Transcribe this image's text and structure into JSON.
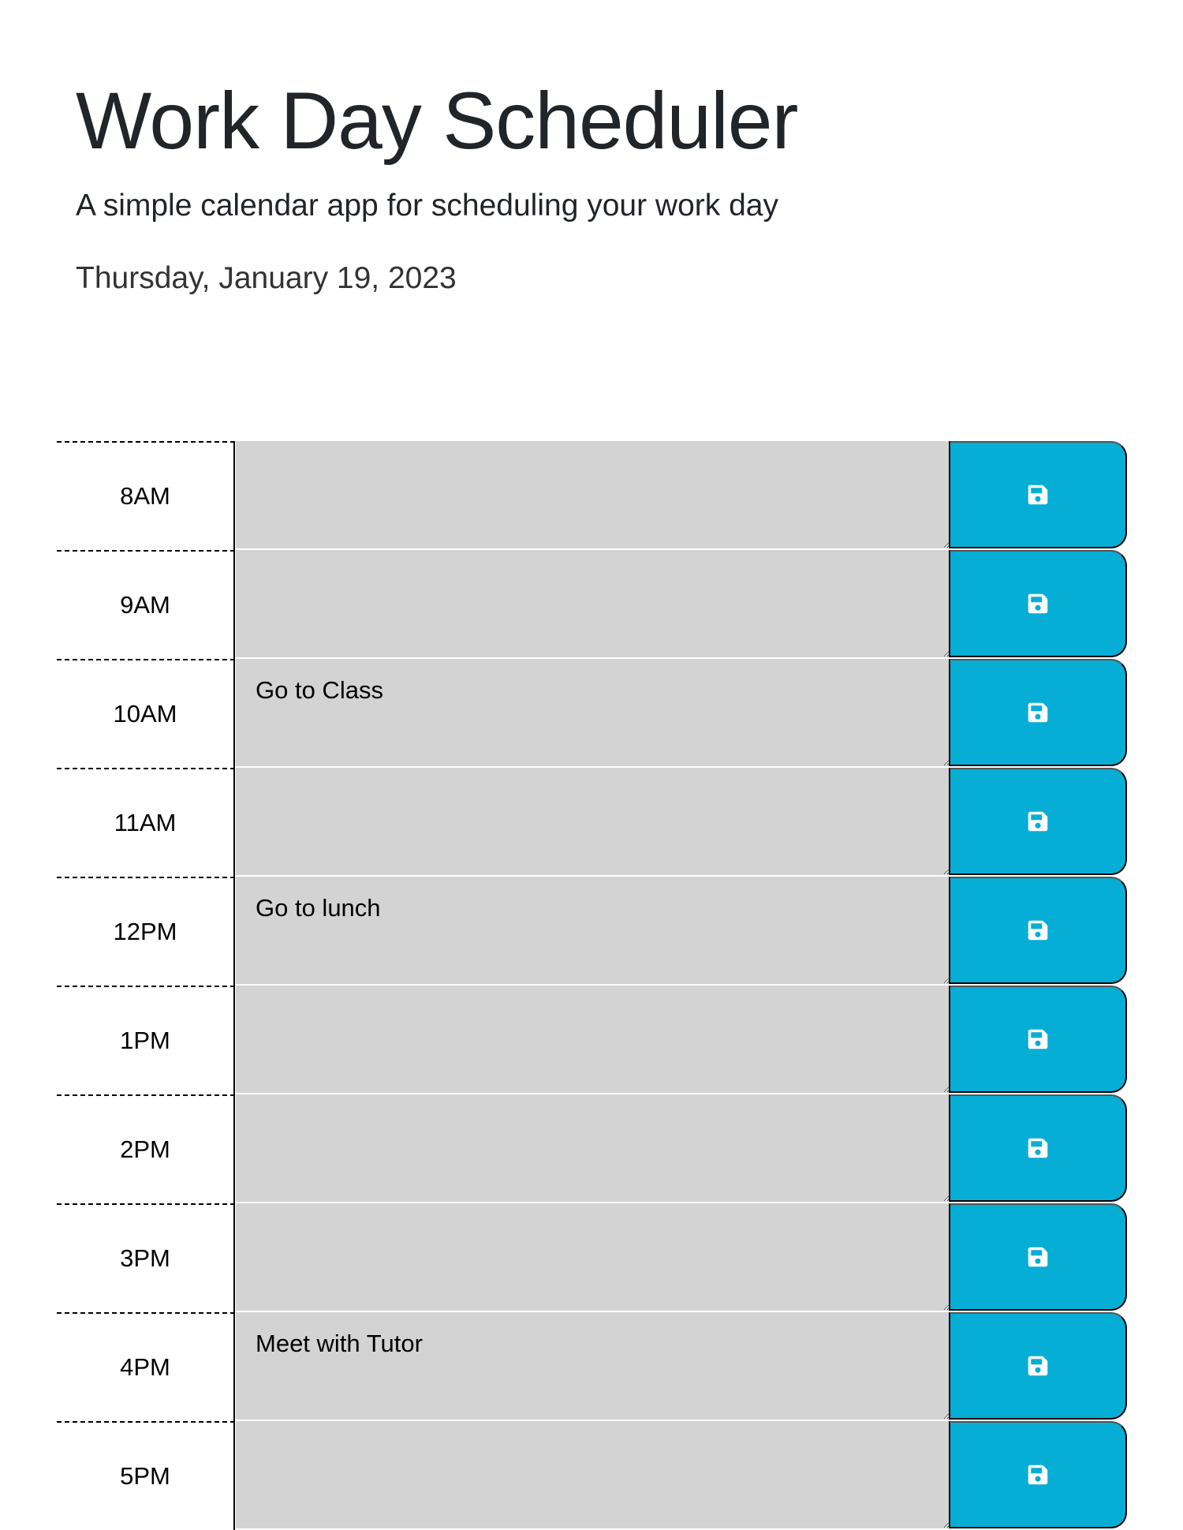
{
  "header": {
    "title": "Work Day Scheduler",
    "subtitle": "A simple calendar app for scheduling your work day",
    "current_day": "Thursday, January 19, 2023"
  },
  "colors": {
    "save_button": "#06aed5",
    "past_block": "#d3d3d3"
  },
  "save_icon": "floppy-disk-icon",
  "hours": [
    {
      "label": "8AM",
      "text": ""
    },
    {
      "label": "9AM",
      "text": ""
    },
    {
      "label": "10AM",
      "text": "Go to Class"
    },
    {
      "label": "11AM",
      "text": ""
    },
    {
      "label": "12PM",
      "text": "Go to lunch"
    },
    {
      "label": "1PM",
      "text": ""
    },
    {
      "label": "2PM",
      "text": ""
    },
    {
      "label": "3PM",
      "text": ""
    },
    {
      "label": "4PM",
      "text": "Meet with Tutor"
    },
    {
      "label": "5PM",
      "text": ""
    }
  ]
}
